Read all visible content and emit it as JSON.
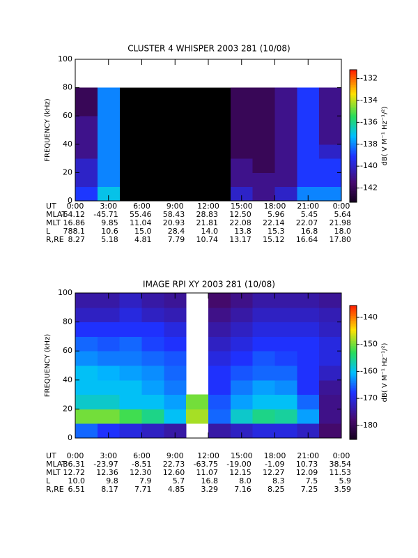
{
  "chart_data": [
    {
      "type": "spectrogram",
      "title": "CLUSTER 4 WHISPER 2003 281 (10/08)",
      "ylabel": "FREQUENCY (kHz)",
      "xlim": [
        0,
        24
      ],
      "xticks": [
        {
          "value": 0,
          "label": "0:00"
        },
        {
          "value": 3,
          "label": "3:00"
        },
        {
          "value": 6,
          "label": "6:00"
        },
        {
          "value": 9,
          "label": "9:00"
        },
        {
          "value": 12,
          "label": "12:00"
        },
        {
          "value": 15,
          "label": "15:00"
        },
        {
          "value": 18,
          "label": "18:00"
        },
        {
          "value": 21,
          "label": "21:00"
        },
        {
          "value": 24,
          "label": "0:00"
        }
      ],
      "ylim": [
        0,
        100
      ],
      "yticks": [
        0,
        20,
        40,
        60,
        80,
        100
      ],
      "x_bins": [
        0,
        2,
        4,
        6,
        8,
        10,
        12,
        14,
        16,
        18,
        20,
        22,
        24
      ],
      "y_bins": [
        0,
        10,
        20,
        30,
        40,
        50,
        60,
        70,
        80
      ],
      "values": [
        [
          -139,
          -137,
          null,
          null,
          null,
          null,
          null,
          -140,
          -141,
          -140,
          -138,
          -138
        ],
        [
          -140,
          -138,
          null,
          null,
          null,
          null,
          null,
          -141,
          -141,
          -141,
          -139,
          -139
        ],
        [
          -140,
          -138,
          null,
          null,
          null,
          null,
          null,
          -141,
          -142,
          -141,
          -139,
          -139
        ],
        [
          -141,
          -138,
          null,
          null,
          null,
          null,
          null,
          -142,
          -142,
          -141,
          -139,
          -140
        ],
        [
          -141,
          -138,
          null,
          null,
          null,
          null,
          null,
          -142,
          -142,
          -141,
          -139,
          -141
        ],
        [
          -141,
          -138,
          null,
          null,
          null,
          null,
          null,
          -142,
          -142,
          -141,
          -139,
          -141
        ],
        [
          -142,
          -138,
          null,
          null,
          null,
          null,
          null,
          -142,
          -142,
          -141,
          -139,
          -141
        ],
        [
          -142,
          -138,
          null,
          null,
          null,
          null,
          null,
          -142,
          -142,
          -141,
          -139,
          -141
        ]
      ],
      "null_color": "#000000",
      "colorbar": {
        "label": "dB( V M⁻¹ Hz⁻¹/²)",
        "lim": [
          -143.3,
          -131.2
        ],
        "ticks": [
          -132,
          -134,
          -136,
          -138,
          -140,
          -142
        ]
      },
      "x_label": "UT",
      "ephemeris": [
        {
          "label": "MLAT",
          "values": [
            "-64.12",
            "-45.71",
            "55.46",
            "58.43",
            "28.83",
            "12.50",
            "5.96",
            "5.45",
            "5.64"
          ]
        },
        {
          "label": "MLT",
          "values": [
            "16.86",
            "9.85",
            "11.04",
            "20.93",
            "21.81",
            "22.08",
            "22.14",
            "22.07",
            "21.98"
          ]
        },
        {
          "label": "L",
          "values": [
            "788.1",
            "10.6",
            "15.0",
            "28.4",
            "14.0",
            "13.8",
            "15.3",
            "16.8",
            "18.0"
          ]
        },
        {
          "label": "R,RE",
          "values": [
            "8.27",
            "5.18",
            "4.81",
            "7.79",
            "10.74",
            "13.17",
            "15.12",
            "16.64",
            "17.80"
          ]
        }
      ]
    },
    {
      "type": "spectrogram",
      "title": "IMAGE RPI XY 2003 281 (10/08)",
      "ylabel": "FREQUENCY (kHz)",
      "xlim": [
        0,
        24
      ],
      "xticks": [
        {
          "value": 0,
          "label": "0:00"
        },
        {
          "value": 3,
          "label": "3:00"
        },
        {
          "value": 6,
          "label": "6:00"
        },
        {
          "value": 9,
          "label": "9:00"
        },
        {
          "value": 12,
          "label": "12:00"
        },
        {
          "value": 15,
          "label": "15:00"
        },
        {
          "value": 18,
          "label": "18:00"
        },
        {
          "value": 21,
          "label": "21:00"
        },
        {
          "value": 24,
          "label": "0:00"
        }
      ],
      "ylim": [
        0,
        100
      ],
      "yticks": [
        0,
        20,
        40,
        60,
        80,
        100
      ],
      "x_bins": [
        0,
        2,
        4,
        6,
        8,
        10,
        12,
        14,
        16,
        18,
        20,
        22,
        24
      ],
      "y_bins": [
        0,
        10,
        20,
        30,
        40,
        50,
        60,
        70,
        80,
        90,
        100
      ],
      "values": [
        [
          -165,
          -168,
          -170,
          -172,
          -174,
          null,
          -174,
          -172,
          -170,
          -170,
          -172,
          -178
        ],
        [
          -150,
          -150,
          -152,
          -155,
          -160,
          -148,
          -165,
          -158,
          -155,
          -156,
          -162,
          -176
        ],
        [
          -158,
          -158,
          -160,
          -160,
          -162,
          -150,
          -166,
          -162,
          -160,
          -160,
          -165,
          -176
        ],
        [
          -160,
          -160,
          -160,
          -162,
          -164,
          null,
          -168,
          -164,
          -162,
          -163,
          -168,
          -175
        ],
        [
          -160,
          -161,
          -162,
          -163,
          -165,
          null,
          -168,
          -166,
          -165,
          -165,
          -168,
          -172
        ],
        [
          -163,
          -164,
          -164,
          -165,
          -166,
          null,
          -170,
          -168,
          -166,
          -167,
          -168,
          -170
        ],
        [
          -165,
          -166,
          -165,
          -167,
          -168,
          null,
          -172,
          -170,
          -168,
          -168,
          -168,
          -170
        ],
        [
          -168,
          -168,
          -168,
          -168,
          -170,
          null,
          -174,
          -172,
          -170,
          -170,
          -170,
          -172
        ],
        [
          -172,
          -172,
          -170,
          -172,
          -173,
          null,
          -176,
          -174,
          -172,
          -172,
          -172,
          -173
        ],
        [
          -174,
          -174,
          -172,
          -174,
          -175,
          null,
          -178,
          -176,
          -174,
          -174,
          -174,
          -175
        ]
      ],
      "null_color": "#ffffff",
      "colorbar": {
        "label": "dB( V M⁻¹ Hz⁻¹/²)",
        "lim": [
          -185.2,
          -135.6
        ],
        "ticks": [
          -140,
          -150,
          -160,
          -170,
          -180
        ]
      },
      "x_label": "UT",
      "ephemeris": [
        {
          "label": "MLAT",
          "values": [
            "-36.31",
            "-23.97",
            "-8.51",
            "22.73",
            "-63.75",
            "-19.00",
            "-1.09",
            "10.73",
            "38.54"
          ]
        },
        {
          "label": "MLT",
          "values": [
            "12.72",
            "12.36",
            "12.30",
            "12.60",
            "11.07",
            "12.15",
            "12.27",
            "12.09",
            "11.53"
          ]
        },
        {
          "label": "L",
          "values": [
            "10.0",
            "9.8",
            "7.9",
            "5.7",
            "16.8",
            "8.0",
            "8.3",
            "7.5",
            "5.9"
          ]
        },
        {
          "label": "R,RE",
          "values": [
            "6.51",
            "8.17",
            "7.71",
            "4.85",
            "3.29",
            "7.16",
            "8.25",
            "7.25",
            "3.59"
          ]
        }
      ]
    }
  ]
}
